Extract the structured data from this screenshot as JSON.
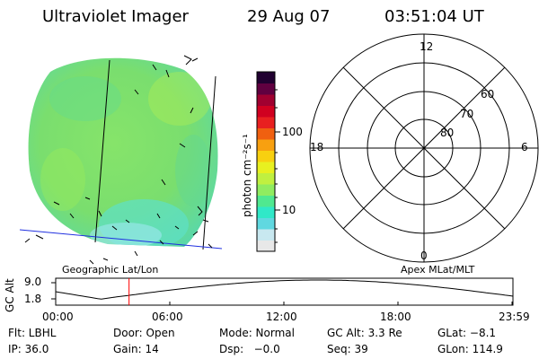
{
  "header": {
    "instrument": "Ultraviolet Imager",
    "date": "29 Aug 07",
    "time": "03:51:04 UT"
  },
  "colorbar": {
    "unit": "photon cm⁻²s⁻¹",
    "ticks": [
      "100",
      "10"
    ],
    "colors": [
      "#e8e8e8",
      "#c8e8f0",
      "#60d8e0",
      "#30e8c8",
      "#50e890",
      "#90ec60",
      "#c0f040",
      "#e8f020",
      "#f8d010",
      "#f8a010",
      "#f06010",
      "#e82020",
      "#d00020",
      "#a00030",
      "#600040",
      "#200030"
    ]
  },
  "left_panel": {
    "label": "Geographic Lat/Lon",
    "image_color": "#7ce06c"
  },
  "right_panel": {
    "label": "Apex MLat/MLT",
    "mlt_labels": [
      "12",
      "18",
      "6",
      "0"
    ],
    "mlat_labels": [
      "60",
      "70",
      "80"
    ]
  },
  "timeline": {
    "axis_title": "GC Alt",
    "y_ticks": [
      "9.0",
      "1.8"
    ],
    "x_ticks": [
      "00:00",
      "06:00",
      "12:00",
      "18:00",
      "23:59"
    ],
    "marker_time": "03:51",
    "marker_color": "#ff0000"
  },
  "footer": {
    "row1": [
      "Flt: LBHL",
      "Door: Open",
      "Mode: Normal",
      "GC Alt: 3.3 Re",
      "GLat: −8.1"
    ],
    "row2": [
      "IP: 36.0",
      "Gain: 14",
      "Dsp:   −0.0",
      "Seq: 39",
      "GLon: 114.9"
    ]
  }
}
